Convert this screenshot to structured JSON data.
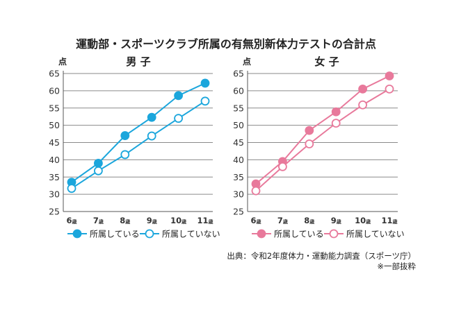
{
  "title": "運動部・スポーツクラブ所属の有無別新体力テストの合計点",
  "source": "出典：令和2年度体力・運動能力調査（スポーツ庁）",
  "note": "※一部抜粋",
  "chart_data": [
    {
      "type": "line",
      "title": "男 子",
      "ylabel": "点",
      "ylim": [
        25,
        65
      ],
      "yticks": [
        25,
        30,
        35,
        40,
        45,
        50,
        55,
        60,
        65
      ],
      "categories": [
        "6歳",
        "7歳",
        "8歳",
        "9歳",
        "10歳",
        "11歳"
      ],
      "grid": true,
      "legend": "bottom",
      "color": "#1ba6dc",
      "series": [
        {
          "name": "所属している",
          "marker": "filled",
          "values": [
            33.5,
            39.0,
            47.0,
            52.3,
            58.6,
            62.2
          ]
        },
        {
          "name": "所属していない",
          "marker": "open",
          "values": [
            31.7,
            36.8,
            41.5,
            46.9,
            52.0,
            57.0
          ]
        }
      ]
    },
    {
      "type": "line",
      "title": "女 子",
      "ylabel": "点",
      "ylim": [
        25,
        65
      ],
      "yticks": [
        25,
        30,
        35,
        40,
        45,
        50,
        55,
        60,
        65
      ],
      "categories": [
        "6歳",
        "7歳",
        "8歳",
        "9歳",
        "10歳",
        "11歳"
      ],
      "grid": true,
      "legend": "bottom",
      "color": "#e8799b",
      "series": [
        {
          "name": "所属している",
          "marker": "filled",
          "values": [
            33.0,
            39.5,
            48.5,
            53.9,
            60.5,
            64.3
          ]
        },
        {
          "name": "所属していない",
          "marker": "open",
          "values": [
            31.0,
            38.0,
            44.6,
            50.6,
            55.9,
            60.5
          ]
        }
      ]
    }
  ]
}
